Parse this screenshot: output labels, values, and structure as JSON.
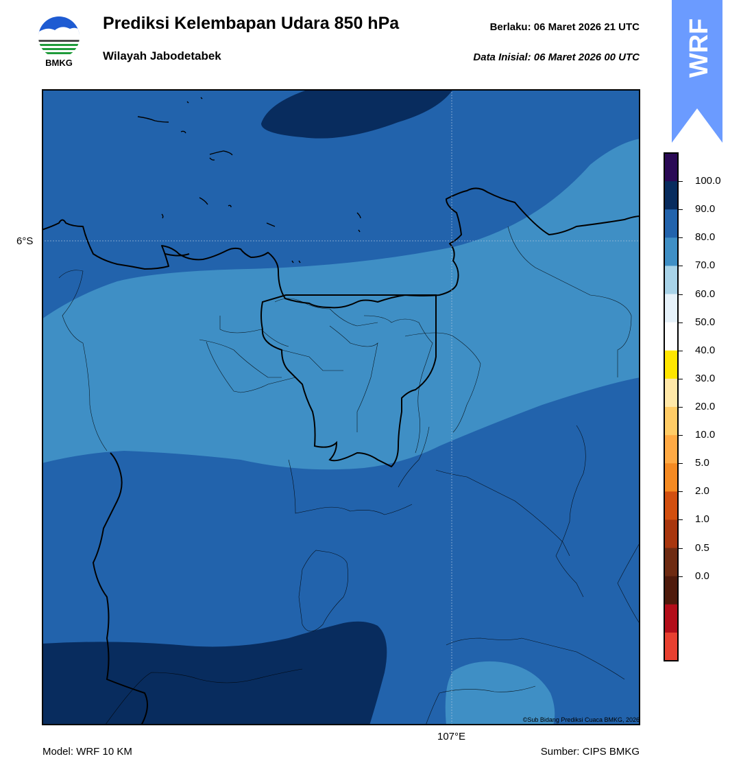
{
  "header": {
    "title": "Prediksi Kelembapan Udara 850 hPa",
    "subtitle": "Wilayah Jabodetabek",
    "valid_time": "Berlaku:  06 Maret 2026 21 UTC",
    "initial_data": "Data Inisial:  06 Maret 2026 00 UTC"
  },
  "logo": {
    "text": "BMKG"
  },
  "banner": {
    "text": "WRF",
    "color": "#6b9bff"
  },
  "map": {
    "lat_label": "6°S",
    "lon_label": "107°E",
    "copyright": "©Sub Bidang Prediksi Cuaca BMKG, 2026"
  },
  "colorbar": {
    "labels": [
      "100.0",
      "90.0",
      "80.0",
      "70.0",
      "60.0",
      "50.0",
      "40.0",
      "30.0",
      "20.0",
      "10.0",
      "5.0",
      "2.0",
      "1.0",
      "0.5",
      "0.0"
    ],
    "colors": [
      "#2a0a55",
      "#082c5e",
      "#2263ac",
      "#3f8fc5",
      "#a8d3e8",
      "#e6f2fa",
      "#ffffff",
      "#ffe600",
      "#ffe8a8",
      "#ffcc66",
      "#ffaa44",
      "#f58a22",
      "#d24f0f",
      "#a8360e",
      "#6e2b12",
      "#4f1b0c",
      "#b30e1a",
      "#e84030"
    ]
  },
  "footer": {
    "model": "Model: WRF 10 KM",
    "source": "Sumber: CIPS BMKG"
  }
}
